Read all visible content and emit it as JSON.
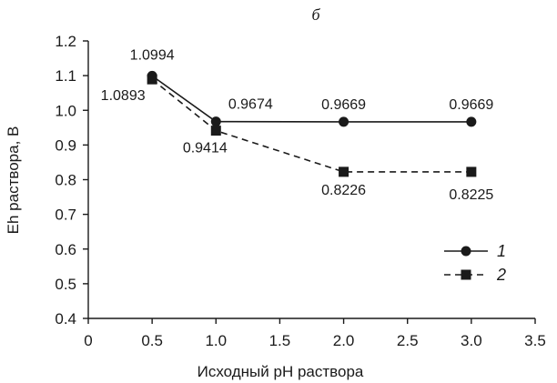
{
  "chart_data": {
    "type": "line",
    "title": "б",
    "xlabel": "Исходный pH раствора",
    "ylabel": "Eh раствора, В",
    "xlim": [
      0,
      3.5
    ],
    "ylim": [
      0.4,
      1.2
    ],
    "x_ticks": [
      "0",
      "0.5",
      "1.0",
      "1.5",
      "2.0",
      "2.5",
      "3.0",
      "3.5"
    ],
    "y_ticks": [
      "0.4",
      "0.5",
      "0.6",
      "0.7",
      "0.8",
      "0.9",
      "1.0",
      "1.1",
      "1.2"
    ],
    "grid": false,
    "legend_position": "right",
    "series": [
      {
        "name": "1",
        "marker": "circle",
        "line_style": "solid",
        "color": "#1a1a1a",
        "x": [
          0.5,
          1.0,
          2.0,
          3.0
        ],
        "y": [
          1.0994,
          0.9674,
          0.9669,
          0.9669
        ],
        "labels": [
          "1.0994",
          "0.9674",
          "0.9669",
          "0.9669"
        ]
      },
      {
        "name": "2",
        "marker": "square",
        "line_style": "dashed",
        "color": "#1a1a1a",
        "x": [
          0.5,
          1.0,
          2.0,
          3.0
        ],
        "y": [
          1.0893,
          0.9414,
          0.8226,
          0.8225
        ],
        "labels": [
          "1.0893",
          "0.9414",
          "0.8226",
          "0.8225"
        ]
      }
    ]
  }
}
